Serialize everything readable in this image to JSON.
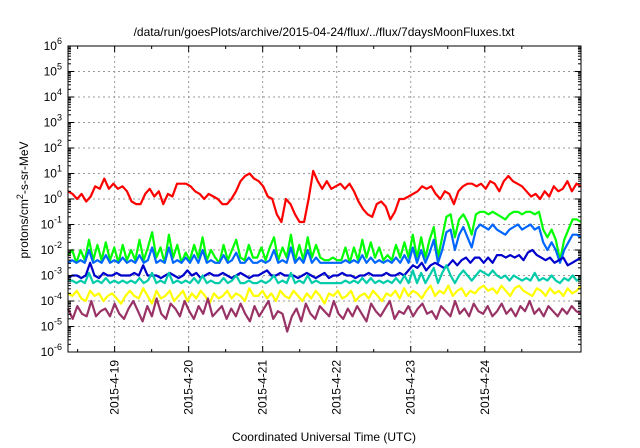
{
  "chart_data": {
    "type": "line",
    "title": "/data/run/goesPlots/archive/2015-04-24/flux/../flux/7daysMoonFluxes.txt",
    "xlabel": "Coordinated Universal Time (UTC)",
    "ylabel_parts": [
      "protons/cm",
      "2",
      "-s-sr-MeV"
    ],
    "yscale": "log",
    "ylim_exp": [
      -6,
      6
    ],
    "y_tick_exponents": [
      -6,
      -5,
      -4,
      -3,
      -2,
      -1,
      0,
      1,
      2,
      3,
      4,
      5,
      6
    ],
    "x_tick_labels": [
      "2015-4-19",
      "2015-4-20",
      "2015-4-21",
      "2015-4-22",
      "2015-4-23",
      "2015-4-24"
    ],
    "xlim_days": [
      -0.63,
      6.3
    ],
    "grid": true,
    "legend": "none",
    "series": [
      {
        "color": "#ff0000",
        "log10_values": [
          0.3,
          0.2,
          0.0,
          0.2,
          -0.1,
          0.1,
          0.5,
          0.4,
          0.8,
          0.4,
          0.6,
          0.4,
          0.5,
          0.3,
          -0.1,
          -0.2,
          -0.2,
          0.2,
          0.4,
          0.1,
          0.3,
          -0.2,
          0.2,
          0.1,
          0.6,
          0.6,
          0.6,
          0.5,
          0.3,
          0.2,
          0.0,
          0.2,
          0.1,
          0.0,
          -0.2,
          -0.2,
          0.0,
          0.3,
          0.7,
          0.9,
          1.0,
          0.8,
          0.7,
          0.5,
          0.1,
          0.0,
          -0.6,
          -0.9,
          0.0,
          -0.2,
          -0.6,
          -0.9,
          -0.9,
          0.0,
          1.1,
          0.7,
          0.4,
          0.7,
          0.4,
          0.5,
          0.6,
          0.4,
          0.6,
          0.3,
          -0.1,
          -0.4,
          -0.6,
          -0.7,
          -0.2,
          -0.1,
          -0.3,
          -0.8,
          -0.5,
          0.0,
          0.0,
          0.1,
          0.2,
          0.3,
          0.5,
          0.4,
          0.5,
          0.2,
          0.0,
          0.3,
          0.2,
          -0.2,
          0.3,
          0.5,
          0.6,
          0.6,
          0.5,
          0.6,
          0.4,
          0.7,
          0.6,
          0.3,
          0.7,
          0.9,
          0.7,
          0.6,
          0.5,
          0.3,
          0.1,
          0.2,
          0.0,
          0.3,
          0.1,
          0.5,
          0.3,
          0.4,
          0.7,
          0.3,
          0.6,
          0.5
        ]
      },
      {
        "color": "#00ff00",
        "log10_values": [
          -2.2,
          -2.0,
          -2.5,
          -2.0,
          -2.4,
          -1.6,
          -2.4,
          -1.8,
          -2.4,
          -1.7,
          -2.4,
          -1.9,
          -2.5,
          -1.8,
          -2.4,
          -2.0,
          -2.4,
          -1.6,
          -2.4,
          -1.9,
          -1.3,
          -2.3,
          -1.9,
          -2.5,
          -1.4,
          -2.3,
          -1.8,
          -2.5,
          -2.1,
          -2.4,
          -1.8,
          -2.3,
          -1.5,
          -2.4,
          -2.0,
          -2.3,
          -2.5,
          -1.8,
          -2.4,
          -2.0,
          -1.6,
          -2.3,
          -2.4,
          -1.8,
          -2.3,
          -2.3,
          -1.9,
          -2.4,
          -1.9,
          -1.5,
          -2.4,
          -1.9,
          -2.3,
          -1.4,
          -2.4,
          -1.8,
          -2.4,
          -1.5,
          -2.3,
          -1.8,
          -2.3,
          -2.4,
          -2.4,
          -2.3,
          -2.4,
          -2.4,
          -1.9,
          -2.5,
          -1.9,
          -2.4,
          -1.6,
          -2.3,
          -1.7,
          -2.3,
          -1.9,
          -2.4,
          -2.2,
          -2.4,
          -1.8,
          -2.3,
          -1.7,
          -2.3,
          -1.4,
          -2.3,
          -1.5,
          -2.3,
          -1.6,
          -1.1,
          -2.3,
          -1.5,
          -0.7,
          -0.6,
          -1.5,
          -0.8,
          -0.6,
          -0.9,
          -1.4,
          -0.6,
          -0.5,
          -0.5,
          -0.6,
          -0.5,
          -0.6,
          -0.7,
          -0.8,
          -0.6,
          -0.5,
          -0.5,
          -0.6,
          -0.5,
          -0.5,
          -0.6,
          -0.5,
          -1.2,
          -1.5,
          -1.2,
          -1.6,
          -2.4,
          -1.6,
          -1.2,
          -0.8,
          -0.8,
          -0.9
        ]
      },
      {
        "color": "#0066ff",
        "log10_values": [
          -2.5,
          -2.4,
          -2.5,
          -2.4,
          -2.5,
          -2.0,
          -2.5,
          -2.4,
          -2.5,
          -2.2,
          -2.5,
          -2.4,
          -2.5,
          -2.3,
          -2.5,
          -2.4,
          -2.5,
          -2.2,
          -2.5,
          -2.4,
          -1.9,
          -2.5,
          -2.4,
          -2.5,
          -1.9,
          -2.5,
          -2.4,
          -2.5,
          -2.3,
          -2.5,
          -2.2,
          -2.5,
          -2.0,
          -2.5,
          -2.4,
          -2.5,
          -2.5,
          -2.2,
          -2.5,
          -2.4,
          -2.1,
          -2.5,
          -2.5,
          -2.3,
          -2.5,
          -2.5,
          -2.4,
          -2.5,
          -2.4,
          -2.0,
          -2.5,
          -2.4,
          -2.5,
          -1.9,
          -2.5,
          -2.3,
          -2.5,
          -2.0,
          -2.5,
          -2.3,
          -2.5,
          -2.5,
          -2.5,
          -2.5,
          -2.5,
          -2.5,
          -2.4,
          -2.5,
          -2.4,
          -2.5,
          -2.2,
          -2.5,
          -2.3,
          -2.5,
          -2.4,
          -2.5,
          -2.4,
          -2.5,
          -2.3,
          -2.5,
          -2.2,
          -2.5,
          -1.9,
          -2.5,
          -2.0,
          -2.5,
          -2.1,
          -1.6,
          -2.5,
          -2.0,
          -1.3,
          -1.2,
          -2.0,
          -1.4,
          -1.1,
          -1.5,
          -1.9,
          -1.2,
          -1.0,
          -1.1,
          -1.2,
          -1.0,
          -1.2,
          -1.3,
          -1.4,
          -1.2,
          -1.1,
          -1.0,
          -1.2,
          -1.1,
          -1.0,
          -1.2,
          -1.1,
          -1.7,
          -2.0,
          -1.7,
          -2.0,
          -2.5,
          -2.0,
          -1.7,
          -1.4,
          -1.4,
          -1.5
        ]
      },
      {
        "color": "#0000cc",
        "log10_values": [
          -3.1,
          -3.0,
          -3.0,
          -3.1,
          -3.0,
          -2.5,
          -3.0,
          -3.1,
          -2.9,
          -3.0,
          -3.0,
          -2.9,
          -3.0,
          -3.0,
          -3.0,
          -2.9,
          -3.0,
          -2.6,
          -3.0,
          -3.0,
          -3.0,
          -3.1,
          -3.0,
          -2.9,
          -3.0,
          -3.1,
          -3.0,
          -2.8,
          -3.0,
          -2.9,
          -3.1,
          -3.0,
          -2.9,
          -3.0,
          -3.0,
          -2.9,
          -3.0,
          -3.1,
          -3.0,
          -2.9,
          -3.0,
          -3.1,
          -3.0,
          -3.0,
          -2.9,
          -2.8,
          -3.0,
          -3.0,
          -2.9,
          -3.0,
          -3.0,
          -3.0,
          -3.1,
          -3.0,
          -2.9,
          -3.0,
          -3.1,
          -3.0,
          -2.9,
          -3.1,
          -3.0,
          -3.0,
          -2.9,
          -3.0,
          -3.0,
          -3.1,
          -3.0,
          -3.0,
          -2.9,
          -3.0,
          -3.0,
          -3.0,
          -2.9,
          -3.0,
          -3.0,
          -2.9,
          -3.0,
          -2.8,
          -2.6,
          -2.7,
          -2.5,
          -2.8,
          -2.6,
          -2.5,
          -2.6,
          -2.7,
          -2.6,
          -2.4,
          -2.6,
          -2.4,
          -2.3,
          -2.5,
          -2.3,
          -2.3,
          -2.5,
          -2.3,
          -2.5,
          -2.2,
          -2.2,
          -2.3,
          -2.2,
          -2.3,
          -2.2,
          -2.4,
          -2.1,
          -2.0,
          -2.2,
          -2.3,
          -2.4,
          -2.3,
          -2.5,
          -2.4,
          -2.3,
          -2.6,
          -2.5,
          -2.4,
          -2.3
        ]
      },
      {
        "color": "#00ccaa",
        "log10_values": [
          -3.2,
          -3.2,
          -3.3,
          -3.2,
          -3.3,
          -2.9,
          -3.3,
          -3.2,
          -3.3,
          -3.1,
          -3.3,
          -3.2,
          -3.3,
          -3.2,
          -3.3,
          -3.2,
          -3.3,
          -3.1,
          -3.3,
          -3.2,
          -2.9,
          -3.3,
          -3.2,
          -3.3,
          -2.9,
          -3.3,
          -3.2,
          -3.3,
          -3.2,
          -3.3,
          -3.1,
          -3.3,
          -3.0,
          -3.3,
          -3.2,
          -3.3,
          -3.3,
          -3.1,
          -3.3,
          -3.2,
          -3.0,
          -3.3,
          -3.3,
          -3.2,
          -3.3,
          -3.3,
          -3.2,
          -3.3,
          -3.2,
          -3.0,
          -3.3,
          -3.2,
          -3.3,
          -2.9,
          -3.3,
          -3.2,
          -3.3,
          -3.0,
          -3.3,
          -3.2,
          -3.3,
          -3.3,
          -3.3,
          -3.3,
          -3.3,
          -3.3,
          -3.2,
          -3.3,
          -3.2,
          -3.3,
          -3.1,
          -3.3,
          -3.1,
          -3.3,
          -3.2,
          -3.3,
          -3.2,
          -3.3,
          -3.1,
          -3.3,
          -3.0,
          -3.3,
          -2.8,
          -3.3,
          -2.9,
          -3.3,
          -3.0,
          -2.7,
          -3.3,
          -2.9,
          -2.6,
          -3.0,
          -3.3,
          -3.0,
          -2.8,
          -3.0,
          -3.2,
          -3.0,
          -2.8,
          -2.9,
          -3.0,
          -2.8,
          -3.0,
          -3.1,
          -3.0,
          -3.2,
          -3.0,
          -3.1,
          -3.2,
          -3.1,
          -3.2,
          -2.9,
          -3.2,
          -3.1,
          -3.2,
          -3.0,
          -3.2,
          -3.3,
          -3.1,
          -3.2,
          -3.0,
          -3.2,
          -3.1
        ]
      },
      {
        "color": "#ffff00",
        "log10_values": [
          -3.7,
          -3.8,
          -3.6,
          -3.9,
          -4.0,
          -3.6,
          -3.8,
          -3.7,
          -4.0,
          -3.8,
          -3.7,
          -3.9,
          -4.1,
          -3.8,
          -3.6,
          -3.8,
          -3.9,
          -3.5,
          -3.8,
          -4.1,
          -3.6,
          -3.9,
          -3.8,
          -3.6,
          -4.0,
          -3.8,
          -3.6,
          -4.0,
          -3.7,
          -3.9,
          -3.6,
          -3.8,
          -4.1,
          -3.7,
          -3.9,
          -3.8,
          -3.6,
          -3.9,
          -3.7,
          -3.8,
          -4.0,
          -3.5,
          -3.8,
          -3.8,
          -3.6,
          -3.9,
          -3.7,
          -4.0,
          -3.6,
          -3.8,
          -3.9,
          -3.6,
          -3.8,
          -4.0,
          -3.7,
          -3.9,
          -3.6,
          -3.8,
          -4.1,
          -3.7,
          -3.8,
          -3.6,
          -3.9,
          -3.8,
          -3.6,
          -4.0,
          -3.8,
          -3.7,
          -3.9,
          -3.6,
          -3.8,
          -4.0,
          -3.7,
          -3.8,
          -3.6,
          -3.9,
          -3.5,
          -3.8,
          -3.6,
          -3.7,
          -3.9,
          -3.6,
          -3.4,
          -3.8,
          -3.6,
          -3.7,
          -3.4,
          -3.8,
          -3.6,
          -3.5,
          -3.8,
          -3.6,
          -3.7,
          -3.5,
          -3.4,
          -3.6,
          -3.5,
          -3.7,
          -3.4,
          -3.6,
          -3.8,
          -3.5,
          -3.4,
          -3.6,
          -3.7,
          -3.8,
          -3.5,
          -3.6,
          -3.8,
          -3.5,
          -3.7,
          -3.6,
          -3.8,
          -3.5,
          -3.7,
          -3.6,
          -3.4
        ]
      },
      {
        "color": "#993366",
        "log10_values": [
          -4.3,
          -4.7,
          -4.2,
          -4.5,
          -4.6,
          -4.0,
          -4.6,
          -4.4,
          -4.3,
          -4.6,
          -4.1,
          -4.5,
          -4.7,
          -4.3,
          -4.0,
          -4.4,
          -4.8,
          -4.2,
          -4.6,
          -3.9,
          -4.5,
          -4.7,
          -4.1,
          -4.3,
          -4.6,
          -4.0,
          -4.4,
          -4.7,
          -4.2,
          -4.5,
          -3.9,
          -4.6,
          -4.4,
          -4.2,
          -4.7,
          -4.3,
          -4.6,
          -4.1,
          -4.5,
          -4.8,
          -4.2,
          -4.6,
          -4.3,
          -4.0,
          -4.7,
          -4.4,
          -4.5,
          -5.2,
          -4.6,
          -4.3,
          -4.8,
          -4.1,
          -4.5,
          -4.7,
          -4.2,
          -4.4,
          -4.6,
          -4.0,
          -4.5,
          -4.7,
          -4.3,
          -4.6,
          -4.2,
          -4.5,
          -4.8,
          -4.1,
          -4.4,
          -4.6,
          -4.3,
          -4.0,
          -4.7,
          -4.4,
          -4.5,
          -4.2,
          -4.6,
          -4.3,
          -4.1,
          -4.5,
          -4.4,
          -4.7,
          -4.2,
          -4.4,
          -4.6,
          -4.0,
          -4.5,
          -4.3,
          -4.6,
          -4.1,
          -4.4,
          -4.5,
          -4.2,
          -4.6,
          -4.4,
          -4.1,
          -4.5,
          -4.3,
          -4.6,
          -4.2,
          -4.4,
          -4.0,
          -4.5,
          -4.3,
          -4.6,
          -4.2,
          -4.4,
          -4.6,
          -4.3,
          -4.5,
          -4.2,
          -4.4,
          -4.5
        ]
      }
    ]
  }
}
